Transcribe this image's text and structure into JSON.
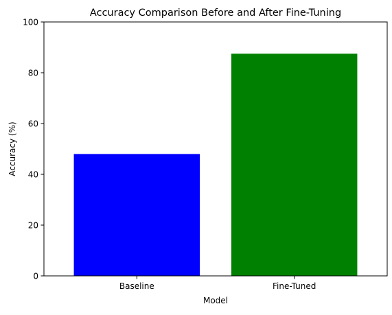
{
  "chart_data": {
    "type": "bar",
    "title": "Accuracy Comparison Before and After Fine-Tuning",
    "xlabel": "Model",
    "ylabel": "Accuracy (%)",
    "categories": [
      "Baseline",
      "Fine-Tuned"
    ],
    "values": [
      48,
      87.5
    ],
    "colors": [
      "#0000ff",
      "#008000"
    ],
    "ylim": [
      0,
      100
    ],
    "yticks": [
      0,
      20,
      40,
      60,
      80,
      100
    ],
    "grid": false,
    "legend": "none"
  }
}
